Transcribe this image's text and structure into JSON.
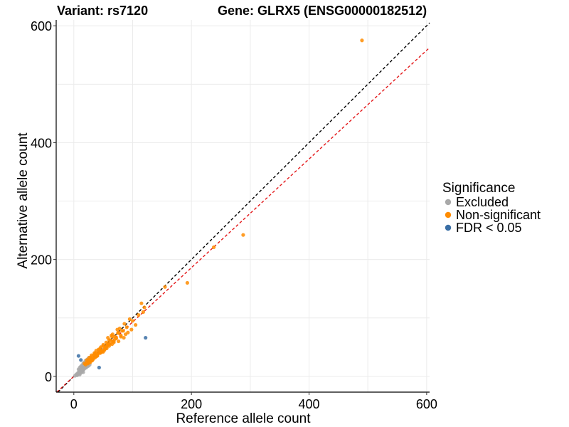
{
  "chart_data": {
    "type": "scatter",
    "title_left": "Variant: rs7120",
    "title_right": "Gene: GLRX5 (ENSG00000182512)",
    "xlabel": "Reference allele count",
    "ylabel": "Alternative allele count",
    "xlim": [
      -30,
      605
    ],
    "ylim": [
      -27,
      610
    ],
    "x_ticks": [
      0,
      200,
      400,
      600
    ],
    "y_ticks": [
      0,
      200,
      400,
      600
    ],
    "grid": true,
    "reference_lines": [
      {
        "name": "identity",
        "slope": 1.0,
        "intercept": 0,
        "color": "#000000",
        "dash": true
      },
      {
        "name": "fitted",
        "slope": 0.93,
        "intercept": 0,
        "color": "#e41a1c",
        "dash": true
      }
    ],
    "legend": {
      "title": "Significance",
      "position": "right",
      "items": [
        {
          "label": "Excluded",
          "color": "#a9a9a9"
        },
        {
          "label": "Non-significant",
          "color": "#ff8c00"
        },
        {
          "label": "FDR < 0.05",
          "color": "#3a6ea5"
        }
      ]
    },
    "series": [
      {
        "name": "Excluded",
        "color": "#a9a9a9",
        "x": [
          2,
          4,
          5,
          6,
          7,
          8,
          9,
          10,
          10,
          11,
          12,
          12,
          13,
          14,
          15,
          15,
          16,
          17,
          18,
          18,
          19,
          20,
          20,
          21,
          22,
          22,
          23,
          24,
          25,
          26,
          8,
          10,
          12,
          14,
          16,
          18,
          20,
          22,
          24,
          26,
          28,
          30,
          9,
          11,
          13,
          15,
          17,
          19,
          21,
          23,
          25,
          27,
          6,
          8,
          10,
          12,
          14,
          16
        ],
        "y": [
          1,
          3,
          2,
          5,
          4,
          7,
          6,
          8,
          11,
          9,
          10,
          13,
          12,
          14,
          11,
          16,
          15,
          13,
          17,
          20,
          18,
          16,
          22,
          19,
          21,
          24,
          20,
          23,
          22,
          25,
          12,
          15,
          17,
          19,
          22,
          24,
          27,
          28,
          30,
          32,
          29,
          31,
          5,
          7,
          9,
          10,
          12,
          14,
          15,
          17,
          18,
          20,
          2,
          4,
          3,
          6,
          8,
          7
        ]
      },
      {
        "name": "Non-significant",
        "color": "#ff8c00",
        "x": [
          490,
          288,
          238,
          193,
          155,
          120,
          118,
          115,
          110,
          105,
          100,
          98,
          95,
          92,
          90,
          88,
          86,
          85,
          82,
          80,
          78,
          76,
          75,
          72,
          70,
          68,
          66,
          65,
          62,
          60,
          58,
          56,
          55,
          52,
          50,
          48,
          46,
          45,
          42,
          40,
          38,
          36,
          35,
          32,
          30,
          28,
          26,
          25,
          22,
          20,
          18,
          60,
          64,
          68,
          72,
          76,
          80,
          84,
          56,
          52,
          48,
          44,
          40,
          36,
          32,
          28,
          24,
          58,
          54,
          50,
          46,
          42,
          38,
          34,
          30,
          26,
          22,
          62,
          66,
          70,
          74,
          50,
          45,
          40,
          35,
          30,
          25,
          55,
          60,
          65,
          43,
          37,
          33,
          29,
          27,
          31,
          39,
          47,
          53,
          57
        ],
        "y": [
          575,
          242,
          221,
          160,
          153,
          118,
          110,
          125,
          105,
          88,
          95,
          80,
          98,
          75,
          84,
          72,
          90,
          66,
          78,
          70,
          82,
          60,
          74,
          65,
          68,
          58,
          72,
          55,
          62,
          52,
          66,
          48,
          58,
          45,
          54,
          42,
          50,
          40,
          46,
          38,
          44,
          34,
          40,
          30,
          36,
          28,
          32,
          24,
          28,
          20,
          22,
          62,
          70,
          60,
          66,
          75,
          68,
          78,
          52,
          46,
          44,
          40,
          36,
          32,
          28,
          24,
          22,
          56,
          48,
          52,
          42,
          40,
          34,
          36,
          30,
          26,
          24,
          56,
          60,
          64,
          80,
          42,
          48,
          35,
          38,
          30,
          28,
          50,
          55,
          68,
          45,
          40,
          30,
          33,
          25,
          27,
          35,
          43,
          49,
          53
        ]
      },
      {
        "name": "FDR < 0.05",
        "color": "#3a6ea5",
        "x": [
          122,
          43,
          8,
          12
        ],
        "y": [
          66,
          15,
          35,
          28
        ]
      }
    ]
  }
}
